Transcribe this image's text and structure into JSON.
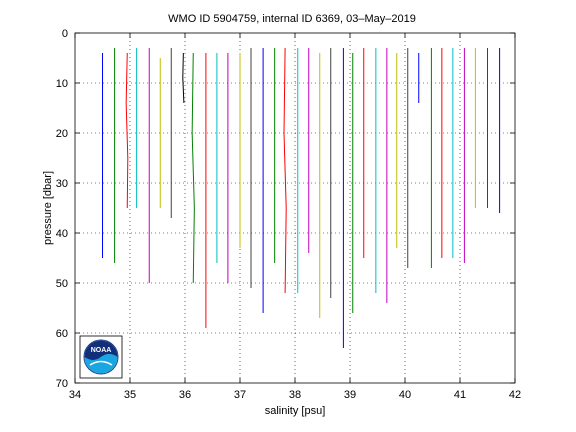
{
  "chart_data": {
    "type": "line",
    "title": "WMO ID 5904759, internal ID 6369, 03–May–2019",
    "xlabel": "salinity [psu]",
    "ylabel": "pressure [dbar]",
    "xlim": [
      34,
      42
    ],
    "ylim": [
      0,
      70
    ],
    "y_reversed": true,
    "grid": true,
    "xticks": [
      "34",
      "35",
      "36",
      "37",
      "38",
      "39",
      "40",
      "41",
      "42"
    ],
    "yticks": [
      "0",
      "10",
      "20",
      "30",
      "40",
      "50",
      "60",
      "70"
    ],
    "logo": "noaa-logo",
    "logo_text": "NOAA",
    "series": [
      {
        "x": [
          34.5,
          34.5
        ],
        "y": [
          4,
          45
        ],
        "color": "#0000ff"
      },
      {
        "x": [
          34.72,
          34.72
        ],
        "y": [
          3,
          46
        ],
        "color": "#008000"
      },
      {
        "x": [
          34.95,
          34.93,
          34.96,
          34.95
        ],
        "y": [
          4,
          14,
          25,
          35
        ],
        "color": "#ff0000"
      },
      {
        "x": [
          35.12,
          35.12
        ],
        "y": [
          3,
          35
        ],
        "color": "#00bfbf"
      },
      {
        "x": [
          35.35,
          35.35
        ],
        "y": [
          3,
          50
        ],
        "color": "#bf00bf"
      },
      {
        "x": [
          35.55,
          35.55
        ],
        "y": [
          5,
          35
        ],
        "color": "#bfbf00"
      },
      {
        "x": [
          35.75,
          35.75
        ],
        "y": [
          3,
          37
        ],
        "color": "#404040"
      },
      {
        "x": [
          35.97,
          35.96,
          35.98
        ],
        "y": [
          4,
          9,
          14
        ],
        "color": "#000000"
      },
      {
        "x": [
          36.15,
          36.13,
          36.17,
          36.15
        ],
        "y": [
          4,
          20,
          35,
          50
        ],
        "color": "#008000"
      },
      {
        "x": [
          36.38,
          36.38
        ],
        "y": [
          4,
          59
        ],
        "color": "#ff0000"
      },
      {
        "x": [
          36.58,
          36.58
        ],
        "y": [
          4,
          46
        ],
        "color": "#00bfbf"
      },
      {
        "x": [
          36.78,
          36.78
        ],
        "y": [
          4,
          50
        ],
        "color": "#bf00bf"
      },
      {
        "x": [
          37.0,
          37.0
        ],
        "y": [
          4,
          43
        ],
        "color": "#bfbf00"
      },
      {
        "x": [
          37.2,
          37.2
        ],
        "y": [
          3,
          51
        ],
        "color": "#404040"
      },
      {
        "x": [
          37.42,
          37.42
        ],
        "y": [
          3,
          56
        ],
        "color": "#0000ff"
      },
      {
        "x": [
          37.63,
          37.63
        ],
        "y": [
          3,
          46
        ],
        "color": "#008000"
      },
      {
        "x": [
          37.82,
          37.8,
          37.84,
          37.82
        ],
        "y": [
          3,
          20,
          35,
          52
        ],
        "color": "#ff0000"
      },
      {
        "x": [
          38.05,
          38.05
        ],
        "y": [
          3,
          52
        ],
        "color": "#00bfbf"
      },
      {
        "x": [
          38.25,
          38.25
        ],
        "y": [
          3,
          44
        ],
        "color": "#bf00bf"
      },
      {
        "x": [
          38.45,
          38.45
        ],
        "y": [
          4,
          57
        ],
        "color": "#bfbf00"
      },
      {
        "x": [
          38.65,
          38.65
        ],
        "y": [
          3,
          53
        ],
        "color": "#404040"
      },
      {
        "x": [
          38.88,
          38.88
        ],
        "y": [
          3,
          63
        ],
        "color": "#0000ff"
      },
      {
        "x": [
          39.05,
          39.05
        ],
        "y": [
          4,
          56
        ],
        "color": "#008000"
      },
      {
        "x": [
          39.25,
          39.25
        ],
        "y": [
          3,
          45
        ],
        "color": "#ff0000"
      },
      {
        "x": [
          39.47,
          39.47
        ],
        "y": [
          3,
          52
        ],
        "color": "#00bfbf"
      },
      {
        "x": [
          39.67,
          39.67
        ],
        "y": [
          3,
          54
        ],
        "color": "#bf00bf"
      },
      {
        "x": [
          39.85,
          39.85
        ],
        "y": [
          4,
          43
        ],
        "color": "#bfbf00"
      },
      {
        "x": [
          40.05,
          40.05
        ],
        "y": [
          3,
          47
        ],
        "color": "#404040"
      },
      {
        "x": [
          40.25,
          40.25
        ],
        "y": [
          4,
          14
        ],
        "color": "#0000ff"
      },
      {
        "x": [
          40.48,
          40.48
        ],
        "y": [
          3,
          47
        ],
        "color": "#008000"
      },
      {
        "x": [
          40.67,
          40.67
        ],
        "y": [
          3,
          45
        ],
        "color": "#ff0000"
      },
      {
        "x": [
          40.87,
          40.87
        ],
        "y": [
          3,
          45
        ],
        "color": "#00bfbf"
      },
      {
        "x": [
          41.08,
          41.08
        ],
        "y": [
          3,
          46
        ],
        "color": "#bf00bf"
      },
      {
        "x": [
          41.28,
          41.28
        ],
        "y": [
          3,
          35
        ],
        "color": "#bfbf00"
      },
      {
        "x": [
          41.5,
          41.5
        ],
        "y": [
          3,
          35
        ],
        "color": "#404040"
      },
      {
        "x": [
          41.72,
          41.72
        ],
        "y": [
          3,
          36
        ],
        "color": "#0000ff"
      }
    ]
  }
}
